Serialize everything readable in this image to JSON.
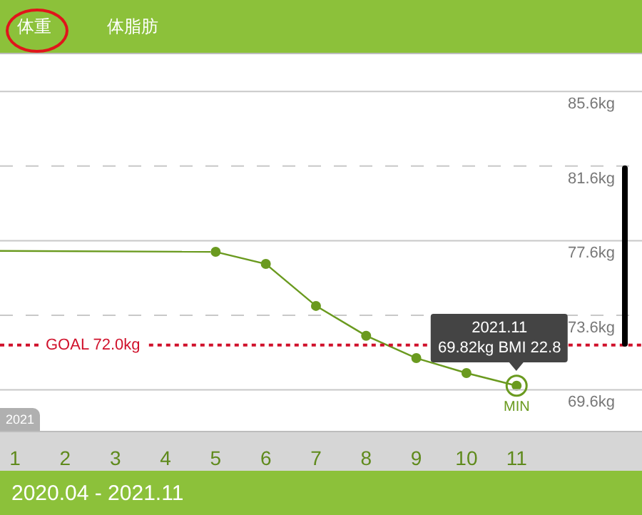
{
  "chart_data": {
    "type": "line",
    "series": [
      {
        "color": "#6a9a1f",
        "x": [
          0.7,
          4.9
        ],
        "values": [
          77.05,
          77.0
        ],
        "marker": "none"
      },
      {
        "color": "#6a9a1f",
        "x": [
          5,
          6,
          7,
          8,
          9,
          10,
          11
        ],
        "values": [
          77.0,
          76.35,
          74.1,
          72.5,
          71.3,
          70.5,
          69.82
        ],
        "marker": "circle"
      }
    ],
    "xlim": [
      0.7,
      13.5
    ],
    "xticks": [
      1,
      2,
      3,
      4,
      5,
      6,
      7,
      8,
      9,
      10,
      11
    ],
    "ylim": [
      67.4,
      87.6
    ],
    "yticks": [
      {
        "value": 69.6,
        "label": "69.6kg"
      },
      {
        "value": 73.6,
        "label": "73.6kg"
      },
      {
        "value": 77.6,
        "label": "77.6kg"
      },
      {
        "value": 81.6,
        "label": "81.6kg"
      },
      {
        "value": 85.6,
        "label": "85.6kg"
      }
    ],
    "grid": "y",
    "ref_lines": [
      {
        "axis": "y",
        "value": 72.0,
        "label": "GOAL 72.0kg",
        "color": "#d0112b",
        "line_style": "dotted"
      }
    ],
    "annotations": [
      "体重",
      "体脂肪",
      "2021",
      "2020.04 - 2021.11",
      {
        "text": "2021.11\n69.82kg  BMI 22.8",
        "x": 11,
        "y": 69.82
      },
      {
        "text": "MIN",
        "x": 11,
        "y": 69.82
      }
    ]
  }
}
